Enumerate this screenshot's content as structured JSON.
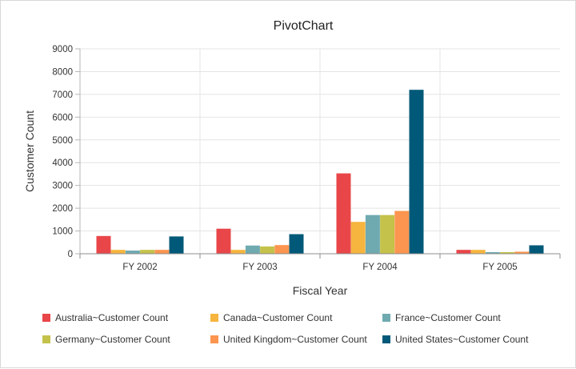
{
  "chart_data": {
    "type": "bar",
    "title": "PivotChart",
    "xlabel": "Fiscal Year",
    "ylabel": "Customer Count",
    "categories": [
      "FY 2002",
      "FY 2003",
      "FY 2004",
      "FY 2005"
    ],
    "ylim": [
      0,
      9000
    ],
    "yticks": [
      0,
      1000,
      2000,
      3000,
      4000,
      5000,
      6000,
      7000,
      8000,
      9000
    ],
    "grid": true,
    "legend_position": "bottom",
    "series": [
      {
        "name": "Australia~Customer Count",
        "color": "#e94649",
        "values": [
          780,
          1100,
          3530,
          170
        ]
      },
      {
        "name": "Canada~Customer Count",
        "color": "#f6b53f",
        "values": [
          170,
          170,
          1400,
          170
        ]
      },
      {
        "name": "France~Customer Count",
        "color": "#6faaB0",
        "values": [
          140,
          360,
          1700,
          70
        ]
      },
      {
        "name": "Germany~Customer Count",
        "color": "#c4c24a",
        "values": [
          170,
          320,
          1700,
          70
        ]
      },
      {
        "name": "United Kingdom~Customer Count",
        "color": "#fb954f",
        "values": [
          170,
          380,
          1880,
          90
        ]
      },
      {
        "name": "United States~Customer Count",
        "color": "#005978",
        "values": [
          760,
          860,
          7200,
          370
        ]
      }
    ]
  }
}
